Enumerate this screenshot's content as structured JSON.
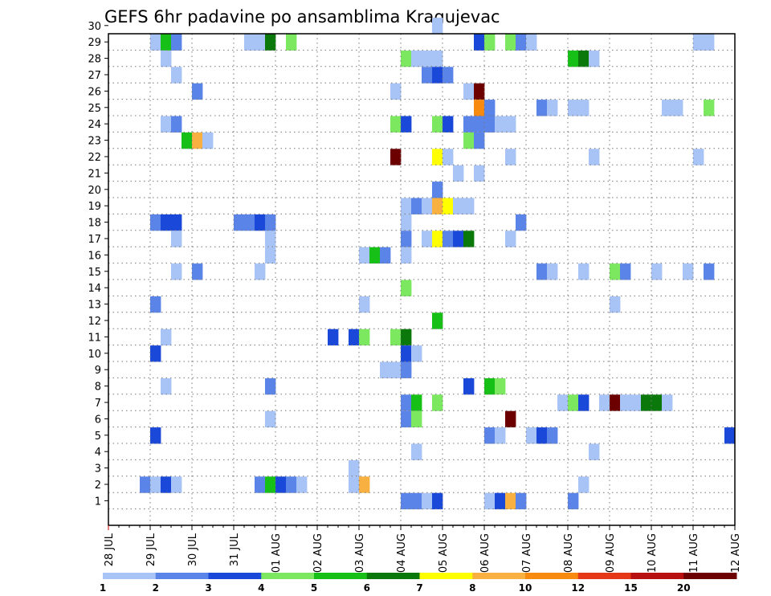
{
  "chart_data": {
    "type": "heatmap",
    "title": "GEFS 6hr padavine po ansamblima Kragujevac",
    "xlabel": "",
    "ylabel": "",
    "x_ticks": [
      "28 JUL",
      "29 JUL",
      "30 JUL",
      "31 JUL",
      "01 AUG",
      "02 AUG",
      "03 AUG",
      "04 AUG",
      "05 AUG",
      "06 AUG",
      "07 AUG",
      "08 AUG",
      "09 AUG",
      "10 AUG",
      "11 AUG",
      "12 AUG"
    ],
    "x_steps_per_day": 4,
    "y_ticks": [
      1,
      2,
      3,
      4,
      5,
      6,
      7,
      8,
      9,
      10,
      11,
      12,
      13,
      14,
      15,
      16,
      17,
      18,
      19,
      20,
      21,
      22,
      23,
      24,
      25,
      26,
      27,
      28,
      29,
      30
    ],
    "xlim_steps": [
      0,
      60
    ],
    "ylim_members": [
      0,
      30
    ],
    "grid": true,
    "colorbar": {
      "levels": [
        "1",
        "2",
        "3",
        "4",
        "5",
        "6",
        "7",
        "8",
        "10",
        "12",
        "15",
        "20"
      ],
      "colors": [
        "#a8c3f6",
        "#5a84e8",
        "#1a48d8",
        "#7ce860",
        "#16c016",
        "#0a780a",
        "#ffff00",
        "#f8b040",
        "#f88a10",
        "#e43818",
        "#b81010",
        "#6c0000"
      ]
    },
    "cells": [
      {
        "m": 30,
        "s": 31,
        "v": 1
      },
      {
        "m": 29,
        "s": 4,
        "v": 1
      },
      {
        "m": 29,
        "s": 5,
        "v": 5
      },
      {
        "m": 29,
        "s": 6,
        "v": 2
      },
      {
        "m": 29,
        "s": 13,
        "v": 1
      },
      {
        "m": 29,
        "s": 14,
        "v": 1
      },
      {
        "m": 29,
        "s": 15,
        "v": 6
      },
      {
        "m": 29,
        "s": 17,
        "v": 4
      },
      {
        "m": 29,
        "s": 35,
        "v": 3
      },
      {
        "m": 29,
        "s": 36,
        "v": 4
      },
      {
        "m": 29,
        "s": 38,
        "v": 4
      },
      {
        "m": 29,
        "s": 39,
        "v": 2
      },
      {
        "m": 29,
        "s": 40,
        "v": 1
      },
      {
        "m": 29,
        "s": 56,
        "v": 1
      },
      {
        "m": 29,
        "s": 57,
        "v": 1
      },
      {
        "m": 28,
        "s": 5,
        "v": 1
      },
      {
        "m": 28,
        "s": 28,
        "v": 4
      },
      {
        "m": 28,
        "s": 29,
        "v": 1
      },
      {
        "m": 28,
        "s": 30,
        "v": 1
      },
      {
        "m": 28,
        "s": 31,
        "v": 1
      },
      {
        "m": 28,
        "s": 44,
        "v": 5
      },
      {
        "m": 28,
        "s": 45,
        "v": 6
      },
      {
        "m": 28,
        "s": 46,
        "v": 1
      },
      {
        "m": 27,
        "s": 6,
        "v": 1
      },
      {
        "m": 27,
        "s": 30,
        "v": 2
      },
      {
        "m": 27,
        "s": 31,
        "v": 3
      },
      {
        "m": 27,
        "s": 32,
        "v": 2
      },
      {
        "m": 26,
        "s": 8,
        "v": 2
      },
      {
        "m": 26,
        "s": 27,
        "v": 1
      },
      {
        "m": 26,
        "s": 34,
        "v": 1
      },
      {
        "m": 26,
        "s": 35,
        "v": 20
      },
      {
        "m": 25,
        "s": 35,
        "v": 9
      },
      {
        "m": 25,
        "s": 36,
        "v": 2
      },
      {
        "m": 25,
        "s": 41,
        "v": 2
      },
      {
        "m": 25,
        "s": 42,
        "v": 1
      },
      {
        "m": 25,
        "s": 44,
        "v": 1
      },
      {
        "m": 25,
        "s": 45,
        "v": 1
      },
      {
        "m": 25,
        "s": 53,
        "v": 1
      },
      {
        "m": 25,
        "s": 54,
        "v": 1
      },
      {
        "m": 25,
        "s": 57,
        "v": 4
      },
      {
        "m": 24,
        "s": 5,
        "v": 1
      },
      {
        "m": 24,
        "s": 6,
        "v": 2
      },
      {
        "m": 24,
        "s": 27,
        "v": 4
      },
      {
        "m": 24,
        "s": 28,
        "v": 3
      },
      {
        "m": 24,
        "s": 31,
        "v": 4
      },
      {
        "m": 24,
        "s": 32,
        "v": 3
      },
      {
        "m": 24,
        "s": 34,
        "v": 2
      },
      {
        "m": 24,
        "s": 35,
        "v": 2
      },
      {
        "m": 24,
        "s": 36,
        "v": 2
      },
      {
        "m": 24,
        "s": 37,
        "v": 1
      },
      {
        "m": 24,
        "s": 38,
        "v": 1
      },
      {
        "m": 23,
        "s": 7,
        "v": 5
      },
      {
        "m": 23,
        "s": 8,
        "v": 8
      },
      {
        "m": 23,
        "s": 9,
        "v": 1
      },
      {
        "m": 23,
        "s": 34,
        "v": 4
      },
      {
        "m": 23,
        "s": 35,
        "v": 2
      },
      {
        "m": 22,
        "s": 27,
        "v": 20
      },
      {
        "m": 22,
        "s": 31,
        "v": 7
      },
      {
        "m": 22,
        "s": 32,
        "v": 1
      },
      {
        "m": 22,
        "s": 38,
        "v": 1
      },
      {
        "m": 22,
        "s": 46,
        "v": 1
      },
      {
        "m": 22,
        "s": 56,
        "v": 1
      },
      {
        "m": 21,
        "s": 33,
        "v": 1
      },
      {
        "m": 21,
        "s": 35,
        "v": 1
      },
      {
        "m": 20,
        "s": 31,
        "v": 2
      },
      {
        "m": 19,
        "s": 28,
        "v": 1
      },
      {
        "m": 19,
        "s": 29,
        "v": 2
      },
      {
        "m": 19,
        "s": 30,
        "v": 1
      },
      {
        "m": 19,
        "s": 31,
        "v": 8
      },
      {
        "m": 19,
        "s": 32,
        "v": 7
      },
      {
        "m": 19,
        "s": 33,
        "v": 1
      },
      {
        "m": 19,
        "s": 34,
        "v": 1
      },
      {
        "m": 18,
        "s": 4,
        "v": 2
      },
      {
        "m": 18,
        "s": 5,
        "v": 3
      },
      {
        "m": 18,
        "s": 6,
        "v": 3
      },
      {
        "m": 18,
        "s": 12,
        "v": 2
      },
      {
        "m": 18,
        "s": 13,
        "v": 2
      },
      {
        "m": 18,
        "s": 14,
        "v": 3
      },
      {
        "m": 18,
        "s": 15,
        "v": 2
      },
      {
        "m": 18,
        "s": 28,
        "v": 1
      },
      {
        "m": 18,
        "s": 39,
        "v": 2
      },
      {
        "m": 17,
        "s": 15,
        "v": 1
      },
      {
        "m": 17,
        "s": 28,
        "v": 2
      },
      {
        "m": 17,
        "s": 30,
        "v": 1
      },
      {
        "m": 17,
        "s": 31,
        "v": 7
      },
      {
        "m": 17,
        "s": 32,
        "v": 2
      },
      {
        "m": 17,
        "s": 33,
        "v": 3
      },
      {
        "m": 17,
        "s": 34,
        "v": 6
      },
      {
        "m": 17,
        "s": 38,
        "v": 1
      },
      {
        "m": 17,
        "s": 6,
        "v": 1
      },
      {
        "m": 16,
        "s": 15,
        "v": 1
      },
      {
        "m": 16,
        "s": 24,
        "v": 1
      },
      {
        "m": 16,
        "s": 25,
        "v": 5
      },
      {
        "m": 16,
        "s": 26,
        "v": 2
      },
      {
        "m": 16,
        "s": 28,
        "v": 1
      },
      {
        "m": 15,
        "s": 8,
        "v": 2
      },
      {
        "m": 15,
        "s": 6,
        "v": 1
      },
      {
        "m": 15,
        "s": 14,
        "v": 1
      },
      {
        "m": 15,
        "s": 41,
        "v": 2
      },
      {
        "m": 15,
        "s": 42,
        "v": 1
      },
      {
        "m": 15,
        "s": 45,
        "v": 1
      },
      {
        "m": 15,
        "s": 48,
        "v": 4
      },
      {
        "m": 15,
        "s": 49,
        "v": 2
      },
      {
        "m": 15,
        "s": 52,
        "v": 1
      },
      {
        "m": 15,
        "s": 55,
        "v": 1
      },
      {
        "m": 15,
        "s": 57,
        "v": 2
      },
      {
        "m": 14,
        "s": 28,
        "v": 4
      },
      {
        "m": 13,
        "s": 24,
        "v": 1
      },
      {
        "m": 13,
        "s": 4,
        "v": 2
      },
      {
        "m": 13,
        "s": 48,
        "v": 1
      },
      {
        "m": 12,
        "s": 31,
        "v": 5
      },
      {
        "m": 11,
        "s": 5,
        "v": 1
      },
      {
        "m": 11,
        "s": 21,
        "v": 3
      },
      {
        "m": 11,
        "s": 23,
        "v": 3
      },
      {
        "m": 11,
        "s": 24,
        "v": 4
      },
      {
        "m": 11,
        "s": 27,
        "v": 4
      },
      {
        "m": 11,
        "s": 28,
        "v": 6
      },
      {
        "m": 10,
        "s": 4,
        "v": 3
      },
      {
        "m": 10,
        "s": 28,
        "v": 3
      },
      {
        "m": 10,
        "s": 29,
        "v": 1
      },
      {
        "m": 9,
        "s": 26,
        "v": 1
      },
      {
        "m": 9,
        "s": 27,
        "v": 1
      },
      {
        "m": 9,
        "s": 28,
        "v": 2
      },
      {
        "m": 8,
        "s": 5,
        "v": 1
      },
      {
        "m": 8,
        "s": 15,
        "v": 2
      },
      {
        "m": 8,
        "s": 34,
        "v": 3
      },
      {
        "m": 8,
        "s": 36,
        "v": 5
      },
      {
        "m": 8,
        "s": 37,
        "v": 4
      },
      {
        "m": 7,
        "s": 28,
        "v": 2
      },
      {
        "m": 7,
        "s": 29,
        "v": 5
      },
      {
        "m": 7,
        "s": 31,
        "v": 4
      },
      {
        "m": 7,
        "s": 43,
        "v": 1
      },
      {
        "m": 7,
        "s": 44,
        "v": 4
      },
      {
        "m": 7,
        "s": 45,
        "v": 3
      },
      {
        "m": 7,
        "s": 47,
        "v": 1
      },
      {
        "m": 7,
        "s": 48,
        "v": 15
      },
      {
        "m": 7,
        "s": 49,
        "v": 1
      },
      {
        "m": 7,
        "s": 50,
        "v": 1
      },
      {
        "m": 7,
        "s": 51,
        "v": 6
      },
      {
        "m": 7,
        "s": 52,
        "v": 6
      },
      {
        "m": 7,
        "s": 53,
        "v": 1
      },
      {
        "m": 6,
        "s": 15,
        "v": 1
      },
      {
        "m": 6,
        "s": 28,
        "v": 2
      },
      {
        "m": 6,
        "s": 29,
        "v": 4
      },
      {
        "m": 6,
        "s": 38,
        "v": 15
      },
      {
        "m": 5,
        "s": 4,
        "v": 3
      },
      {
        "m": 5,
        "s": 36,
        "v": 2
      },
      {
        "m": 5,
        "s": 37,
        "v": 1
      },
      {
        "m": 5,
        "s": 40,
        "v": 1
      },
      {
        "m": 5,
        "s": 41,
        "v": 3
      },
      {
        "m": 5,
        "s": 42,
        "v": 2
      },
      {
        "m": 5,
        "s": 59,
        "v": 3
      },
      {
        "m": 4,
        "s": 29,
        "v": 1
      },
      {
        "m": 4,
        "s": 46,
        "v": 1
      },
      {
        "m": 3,
        "s": 23,
        "v": 1
      },
      {
        "m": 2,
        "s": 3,
        "v": 2
      },
      {
        "m": 2,
        "s": 4,
        "v": 1
      },
      {
        "m": 2,
        "s": 5,
        "v": 3
      },
      {
        "m": 2,
        "s": 6,
        "v": 1
      },
      {
        "m": 2,
        "s": 14,
        "v": 2
      },
      {
        "m": 2,
        "s": 15,
        "v": 5
      },
      {
        "m": 2,
        "s": 16,
        "v": 3
      },
      {
        "m": 2,
        "s": 17,
        "v": 2
      },
      {
        "m": 2,
        "s": 18,
        "v": 1
      },
      {
        "m": 2,
        "s": 23,
        "v": 1
      },
      {
        "m": 2,
        "s": 24,
        "v": 8
      },
      {
        "m": 2,
        "s": 45,
        "v": 1
      },
      {
        "m": 1,
        "s": 28,
        "v": 2
      },
      {
        "m": 1,
        "s": 29,
        "v": 2
      },
      {
        "m": 1,
        "s": 30,
        "v": 1
      },
      {
        "m": 1,
        "s": 31,
        "v": 3
      },
      {
        "m": 1,
        "s": 36,
        "v": 1
      },
      {
        "m": 1,
        "s": 37,
        "v": 3
      },
      {
        "m": 1,
        "s": 38,
        "v": 8
      },
      {
        "m": 1,
        "s": 39,
        "v": 2
      },
      {
        "m": 1,
        "s": 44,
        "v": 2
      }
    ]
  }
}
